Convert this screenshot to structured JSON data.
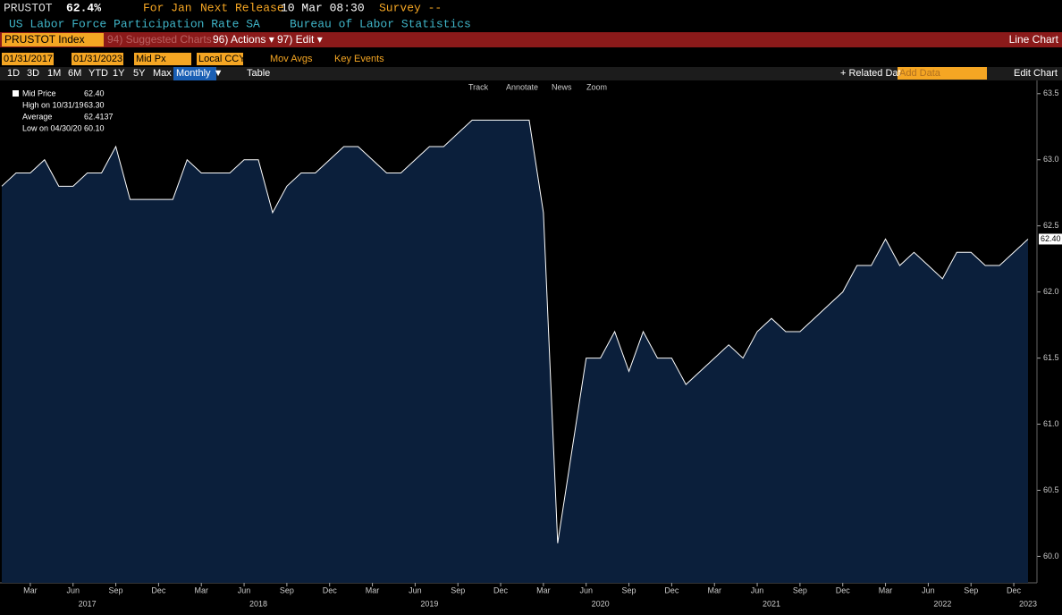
{
  "ui": {
    "ticker": "PRUSTOT",
    "last": "62.4%",
    "for": "For Jan",
    "next_release": "Next Release",
    "release_date": "10 Mar 08:30",
    "survey": "Survey --",
    "description": "US Labor Force Participation Rate SA",
    "source": "Bureau of Labor Statistics",
    "security": "PRUSTOT Index",
    "suggested": "94) Suggested Charts",
    "actions": "96) Actions ▾",
    "edit": "97) Edit ▾",
    "chart_kind": "Line Chart",
    "start_date": "01/31/2017",
    "end_date": "01/31/2023",
    "field": "Mid Px",
    "currency": "Local CCY",
    "mov_avgs": "Mov Avgs",
    "key_events": "Key Events",
    "periods": [
      "1D",
      "3D",
      "1M",
      "6M",
      "YTD",
      "1Y",
      "5Y",
      "Max"
    ],
    "frequency": "Monthly ▼",
    "table": "Table",
    "related": "+ Related Dat",
    "add_data": "Add Data",
    "edit_chart": "Edit Chart",
    "tools": [
      "Track",
      "Annotate",
      "News",
      "Zoom"
    ],
    "legend": [
      [
        "Mid Price",
        "62.40"
      ],
      [
        "High on 10/31/19",
        "63.30"
      ],
      [
        "Average",
        "62.4137"
      ],
      [
        "Low on 04/30/20",
        "60.10"
      ]
    ]
  },
  "chart_data": {
    "type": "area",
    "x": [
      "2017-01",
      "2017-02",
      "2017-03",
      "2017-04",
      "2017-05",
      "2017-06",
      "2017-07",
      "2017-08",
      "2017-09",
      "2017-10",
      "2017-11",
      "2017-12",
      "2018-01",
      "2018-02",
      "2018-03",
      "2018-04",
      "2018-05",
      "2018-06",
      "2018-07",
      "2018-08",
      "2018-09",
      "2018-10",
      "2018-11",
      "2018-12",
      "2019-01",
      "2019-02",
      "2019-03",
      "2019-04",
      "2019-05",
      "2019-06",
      "2019-07",
      "2019-08",
      "2019-09",
      "2019-10",
      "2019-11",
      "2019-12",
      "2020-01",
      "2020-02",
      "2020-03",
      "2020-04",
      "2020-05",
      "2020-06",
      "2020-07",
      "2020-08",
      "2020-09",
      "2020-10",
      "2020-11",
      "2020-12",
      "2021-01",
      "2021-02",
      "2021-03",
      "2021-04",
      "2021-05",
      "2021-06",
      "2021-07",
      "2021-08",
      "2021-09",
      "2021-10",
      "2021-11",
      "2021-12",
      "2022-01",
      "2022-02",
      "2022-03",
      "2022-04",
      "2022-05",
      "2022-06",
      "2022-07",
      "2022-08",
      "2022-09",
      "2022-10",
      "2022-11",
      "2022-12",
      "2023-01"
    ],
    "series": [
      {
        "name": "Mid Price",
        "color": "#ffffff",
        "fill": "#0b1f3b",
        "values": [
          62.8,
          62.9,
          62.9,
          63.0,
          62.8,
          62.8,
          62.9,
          62.9,
          63.1,
          62.7,
          62.7,
          62.7,
          62.7,
          63.0,
          62.9,
          62.9,
          62.9,
          63.0,
          63.0,
          62.6,
          62.8,
          62.9,
          62.9,
          63.0,
          63.1,
          63.1,
          63.0,
          62.9,
          62.9,
          63.0,
          63.1,
          63.1,
          63.2,
          63.3,
          63.3,
          63.3,
          63.3,
          63.3,
          62.6,
          60.1,
          60.8,
          61.5,
          61.5,
          61.7,
          61.4,
          61.7,
          61.5,
          61.5,
          61.3,
          61.4,
          61.5,
          61.6,
          61.5,
          61.7,
          61.8,
          61.7,
          61.7,
          61.8,
          61.9,
          62.0,
          62.2,
          62.2,
          62.4,
          62.2,
          62.3,
          62.2,
          62.1,
          62.3,
          62.3,
          62.2,
          62.2,
          62.3,
          62.4
        ]
      }
    ],
    "last_value_label": "62.40",
    "xlim": [
      "2017-01",
      "2023-01"
    ],
    "ylim": [
      59.8,
      63.6
    ],
    "yticks": [
      {
        "value": 60,
        "label": "60.0"
      },
      {
        "value": 60.5,
        "label": "60.5"
      },
      {
        "value": 61,
        "label": "61.0"
      },
      {
        "value": 61.5,
        "label": "61.5"
      },
      {
        "value": 62,
        "label": "62.0"
      },
      {
        "value": 62.5,
        "label": "62.5"
      },
      {
        "value": 63,
        "label": "63.0"
      },
      {
        "value": 63.5,
        "label": "63.5"
      }
    ],
    "xticks": [
      {
        "value": "2017-03",
        "label": "Mar"
      },
      {
        "value": "2017-06",
        "label": "Jun"
      },
      {
        "value": "2017-09",
        "label": "Sep"
      },
      {
        "value": "2017-12",
        "label": "Dec"
      },
      {
        "value": "2018-03",
        "label": "Mar"
      },
      {
        "value": "2018-06",
        "label": "Jun"
      },
      {
        "value": "2018-09",
        "label": "Sep"
      },
      {
        "value": "2018-12",
        "label": "Dec"
      },
      {
        "value": "2019-03",
        "label": "Mar"
      },
      {
        "value": "2019-06",
        "label": "Jun"
      },
      {
        "value": "2019-09",
        "label": "Sep"
      },
      {
        "value": "2019-12",
        "label": "Dec"
      },
      {
        "value": "2020-03",
        "label": "Mar"
      },
      {
        "value": "2020-06",
        "label": "Jun"
      },
      {
        "value": "2020-09",
        "label": "Sep"
      },
      {
        "value": "2020-12",
        "label": "Dec"
      },
      {
        "value": "2021-03",
        "label": "Mar"
      },
      {
        "value": "2021-06",
        "label": "Jun"
      },
      {
        "value": "2021-09",
        "label": "Sep"
      },
      {
        "value": "2021-12",
        "label": "Dec"
      },
      {
        "value": "2022-03",
        "label": "Mar"
      },
      {
        "value": "2022-06",
        "label": "Jun"
      },
      {
        "value": "2022-09",
        "label": "Sep"
      },
      {
        "value": "2022-12",
        "label": "Dec"
      }
    ],
    "xyears": [
      {
        "value": "2017-07",
        "label": "2017"
      },
      {
        "value": "2018-07",
        "label": "2018"
      },
      {
        "value": "2019-07",
        "label": "2019"
      },
      {
        "value": "2020-07",
        "label": "2020"
      },
      {
        "value": "2021-07",
        "label": "2021"
      },
      {
        "value": "2022-07",
        "label": "2022"
      },
      {
        "value": "2023-01",
        "label": "2023"
      }
    ],
    "grid": false
  }
}
